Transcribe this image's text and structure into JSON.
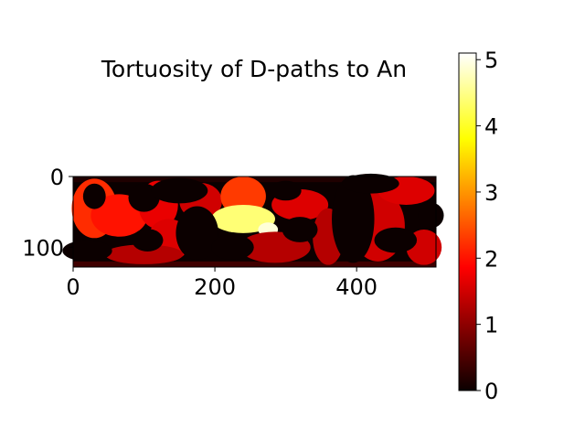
{
  "chart_data": {
    "type": "heatmap",
    "title": "Tortuosity of D-paths to An",
    "xlabel": "",
    "ylabel": "",
    "x_range": [
      0,
      512
    ],
    "y_range": [
      0,
      128
    ],
    "x_ticks": [
      0,
      200,
      400
    ],
    "y_ticks": [
      0,
      100
    ],
    "colormap": "hot",
    "colorbar": {
      "range": [
        0,
        5.1
      ],
      "ticks": [
        0,
        1,
        2,
        3,
        4,
        5
      ]
    },
    "grid": false,
    "regions": [
      {
        "shape": "band",
        "y": [
          0,
          8
        ],
        "value": 0.15
      },
      {
        "shape": "band",
        "y": [
          120,
          128
        ],
        "value": 0.4
      },
      {
        "shape": "blob",
        "cx": 30,
        "cy": 45,
        "rx": 32,
        "ry": 42,
        "value": 2.2
      },
      {
        "shape": "blob",
        "cx": 65,
        "cy": 55,
        "rx": 40,
        "ry": 30,
        "value": 2.0
      },
      {
        "shape": "blob",
        "cx": 120,
        "cy": 40,
        "rx": 28,
        "ry": 34,
        "value": 1.7
      },
      {
        "shape": "blob",
        "cx": 135,
        "cy": 90,
        "rx": 30,
        "ry": 30,
        "value": 1.6
      },
      {
        "shape": "blob",
        "cx": 180,
        "cy": 35,
        "rx": 30,
        "ry": 26,
        "value": 1.5
      },
      {
        "shape": "blob",
        "cx": 100,
        "cy": 110,
        "rx": 55,
        "ry": 14,
        "value": 1.3
      },
      {
        "shape": "blob",
        "cx": 240,
        "cy": 28,
        "rx": 32,
        "ry": 28,
        "value": 2.3
      },
      {
        "shape": "blob",
        "cx": 240,
        "cy": 60,
        "rx": 45,
        "ry": 20,
        "value": 4.4
      },
      {
        "shape": "blob",
        "cx": 275,
        "cy": 75,
        "rx": 14,
        "ry": 10,
        "value": 4.9
      },
      {
        "shape": "blob",
        "cx": 285,
        "cy": 100,
        "rx": 50,
        "ry": 22,
        "value": 1.3
      },
      {
        "shape": "blob",
        "cx": 320,
        "cy": 40,
        "rx": 40,
        "ry": 22,
        "value": 1.6
      },
      {
        "shape": "blob",
        "cx": 360,
        "cy": 85,
        "rx": 22,
        "ry": 40,
        "value": 1.3
      },
      {
        "shape": "blob",
        "cx": 430,
        "cy": 70,
        "rx": 38,
        "ry": 50,
        "value": 1.5
      },
      {
        "shape": "blob",
        "cx": 470,
        "cy": 20,
        "rx": 40,
        "ry": 20,
        "value": 1.6
      },
      {
        "shape": "blob",
        "cx": 495,
        "cy": 100,
        "rx": 25,
        "ry": 25,
        "value": 1.5
      },
      {
        "shape": "blob",
        "cx": 30,
        "cy": 28,
        "rx": 16,
        "ry": 18,
        "value": 0
      },
      {
        "shape": "blob",
        "cx": 20,
        "cy": 105,
        "rx": 35,
        "ry": 15,
        "value": 0
      },
      {
        "shape": "blob",
        "cx": 100,
        "cy": 30,
        "rx": 22,
        "ry": 20,
        "value": 0
      },
      {
        "shape": "blob",
        "cx": 150,
        "cy": 20,
        "rx": 40,
        "ry": 18,
        "value": 0
      },
      {
        "shape": "blob",
        "cx": 175,
        "cy": 80,
        "rx": 30,
        "ry": 38,
        "value": 0
      },
      {
        "shape": "blob",
        "cx": 105,
        "cy": 90,
        "rx": 22,
        "ry": 16,
        "value": 0
      },
      {
        "shape": "blob",
        "cx": 225,
        "cy": 100,
        "rx": 30,
        "ry": 18,
        "value": 0
      },
      {
        "shape": "blob",
        "cx": 300,
        "cy": 20,
        "rx": 22,
        "ry": 14,
        "value": 0
      },
      {
        "shape": "blob",
        "cx": 320,
        "cy": 75,
        "rx": 25,
        "ry": 18,
        "value": 0
      },
      {
        "shape": "blob",
        "cx": 395,
        "cy": 60,
        "rx": 30,
        "ry": 62,
        "value": 0
      },
      {
        "shape": "blob",
        "cx": 455,
        "cy": 90,
        "rx": 30,
        "ry": 18,
        "value": 0
      },
      {
        "shape": "blob",
        "cx": 505,
        "cy": 55,
        "rx": 18,
        "ry": 18,
        "value": 0
      },
      {
        "shape": "blob",
        "cx": 420,
        "cy": 10,
        "rx": 40,
        "ry": 14,
        "value": 0
      }
    ]
  }
}
